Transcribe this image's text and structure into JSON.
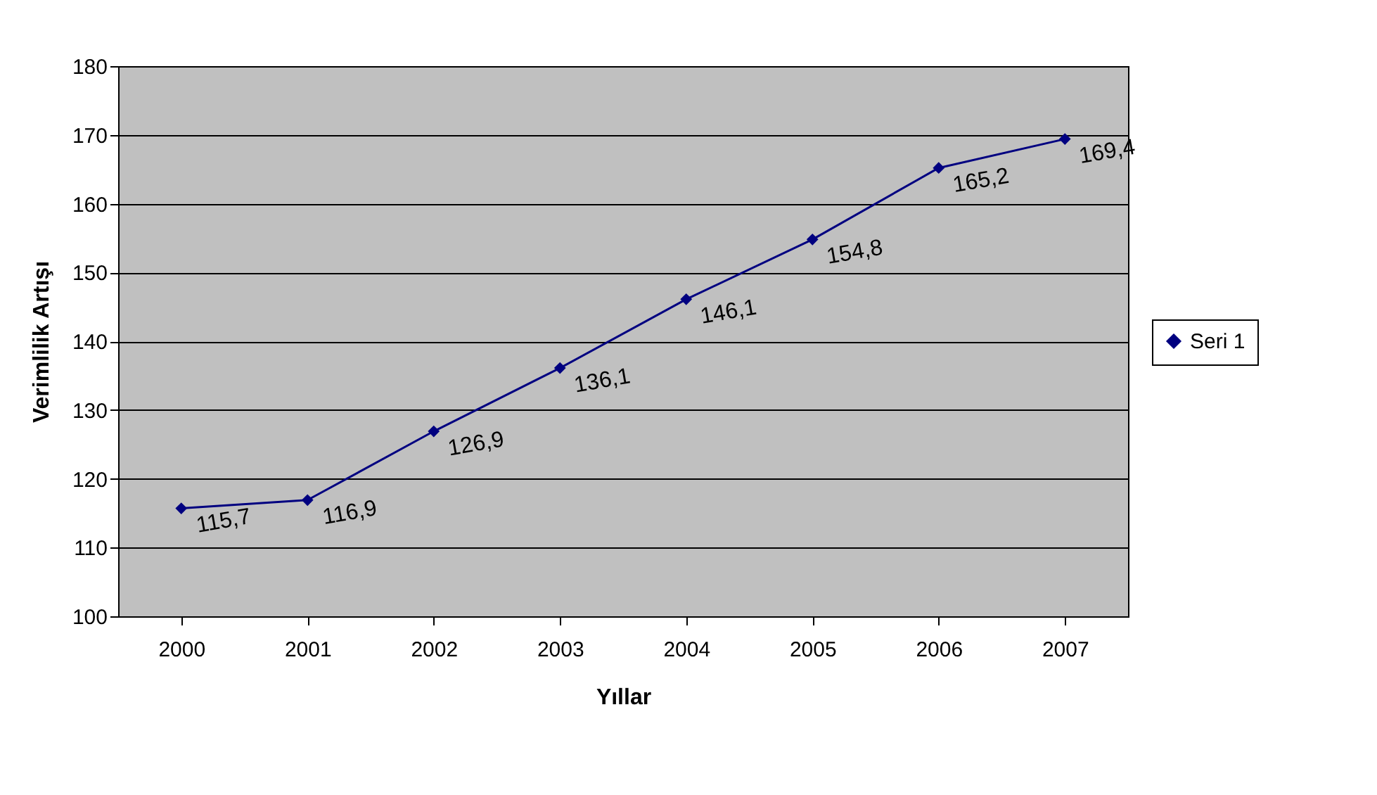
{
  "chart_data": {
    "type": "line",
    "xlabel": "Yıllar",
    "ylabel": "Verimlilik Artışı",
    "categories": [
      "2000",
      "2001",
      "2002",
      "2003",
      "2004",
      "2005",
      "2006",
      "2007"
    ],
    "series": [
      {
        "name": "Seri 1",
        "color": "#000080",
        "values": [
          115.7,
          116.9,
          126.9,
          136.1,
          146.1,
          154.8,
          165.2,
          169.4
        ],
        "value_labels": [
          "115,7",
          "116,9",
          "126,9",
          "136,1",
          "146,1",
          "154,8",
          "165,2",
          "169,4"
        ]
      }
    ],
    "ylim": [
      100,
      180
    ],
    "yticks": [
      100,
      110,
      120,
      130,
      140,
      150,
      160,
      170,
      180
    ],
    "grid": "y",
    "legend": "right",
    "marker": "diamond",
    "line_style": "solid"
  }
}
